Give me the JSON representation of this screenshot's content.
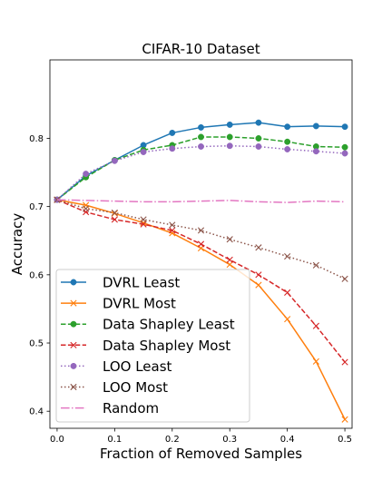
{
  "chart_data": {
    "type": "line",
    "title": "CIFAR-10 Dataset",
    "xlabel": "Fraction of Removed Samples",
    "ylabel": "Accuracy",
    "xlim": [
      -0.0125,
      0.5125
    ],
    "ylim": [
      0.375,
      0.915
    ],
    "xticks": [
      0.0,
      0.1,
      0.2,
      0.3,
      0.4,
      0.5
    ],
    "xtick_labels": [
      "0.0",
      "0.1",
      "0.2",
      "0.3",
      "0.4",
      "0.5"
    ],
    "yticks": [
      0.4,
      0.5,
      0.6,
      0.7,
      0.8
    ],
    "ytick_labels": [
      "0.4",
      "0.5",
      "0.6",
      "0.7",
      "0.8"
    ],
    "grid": false,
    "legend_position": "lower-left",
    "x": [
      0.0,
      0.05,
      0.1,
      0.15,
      0.2,
      0.25,
      0.3,
      0.35,
      0.4,
      0.45,
      0.5
    ],
    "series": [
      {
        "name": "DVRL Least",
        "color": "#1f77b4",
        "linestyle": "solid",
        "marker": "circle",
        "values": [
          0.71,
          0.745,
          0.768,
          0.79,
          0.808,
          0.816,
          0.82,
          0.823,
          0.817,
          0.818,
          0.817
        ]
      },
      {
        "name": "DVRL Most",
        "color": "#ff7f0e",
        "linestyle": "solid",
        "marker": "x",
        "values": [
          0.71,
          0.702,
          0.69,
          0.676,
          0.661,
          0.639,
          0.615,
          0.585,
          0.535,
          0.473,
          0.388
        ]
      },
      {
        "name": "Data Shapley Least",
        "color": "#2ca02c",
        "linestyle": "dashed",
        "marker": "circle",
        "values": [
          0.71,
          0.743,
          0.768,
          0.783,
          0.79,
          0.802,
          0.802,
          0.8,
          0.795,
          0.788,
          0.787
        ]
      },
      {
        "name": "Data Shapley Most",
        "color": "#d62728",
        "linestyle": "dashed",
        "marker": "x",
        "values": [
          0.71,
          0.692,
          0.681,
          0.674,
          0.665,
          0.645,
          0.622,
          0.6,
          0.574,
          0.525,
          0.472
        ]
      },
      {
        "name": "LOO Least",
        "color": "#9467bd",
        "linestyle": "dotted",
        "marker": "circle",
        "values": [
          0.71,
          0.748,
          0.767,
          0.78,
          0.785,
          0.788,
          0.789,
          0.788,
          0.784,
          0.781,
          0.778
        ]
      },
      {
        "name": "LOO Most",
        "color": "#8c564b",
        "linestyle": "dotted",
        "marker": "x",
        "values": [
          0.71,
          0.697,
          0.691,
          0.681,
          0.673,
          0.665,
          0.652,
          0.64,
          0.627,
          0.614,
          0.594
        ]
      },
      {
        "name": "Random",
        "color": "#e377c2",
        "linestyle": "dashdot",
        "marker": "none",
        "values": [
          0.71,
          0.709,
          0.708,
          0.707,
          0.707,
          0.708,
          0.709,
          0.707,
          0.706,
          0.708,
          0.707
        ]
      }
    ]
  }
}
